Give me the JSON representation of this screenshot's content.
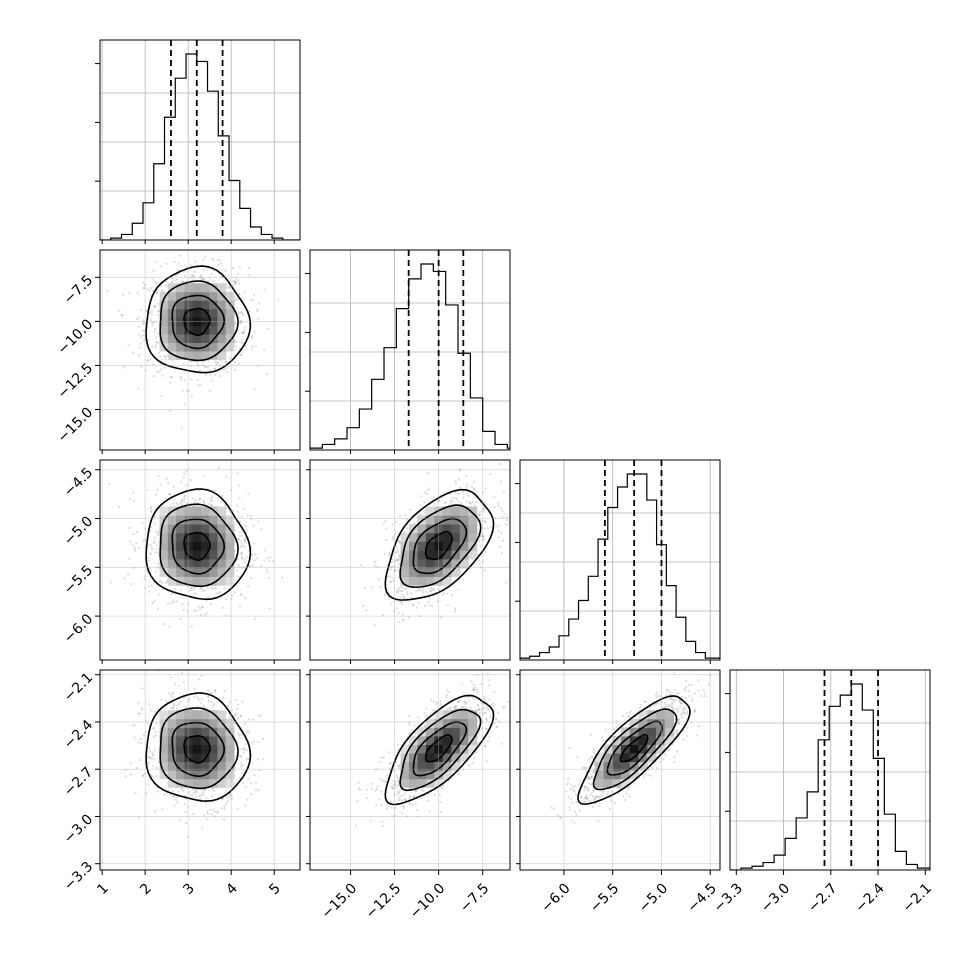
{
  "chart_data": {
    "type": "corner",
    "n_params": 4,
    "labels": [
      "",
      "",
      "",
      ""
    ],
    "params": [
      {
        "index": 0,
        "range": [
          0.95,
          5.6
        ],
        "ticks": [
          1,
          2,
          3,
          4,
          5
        ],
        "tick_labels": [
          "1",
          "2",
          "3",
          "4",
          "5"
        ],
        "quantiles": [
          2.6,
          3.2,
          3.8
        ],
        "median": 3.2,
        "sigma": 0.6
      },
      {
        "index": 1,
        "range": [
          -17.3,
          -5.95
        ],
        "ticks": [
          -15.0,
          -12.5,
          -10.0,
          -7.5
        ],
        "tick_labels": [
          "−15.0",
          "−12.5",
          "−10.0",
          "−7.5"
        ],
        "quantiles": [
          -11.7,
          -10.0,
          -8.6
        ],
        "median": -10.0,
        "sigma": 1.5
      },
      {
        "index": 2,
        "range": [
          -6.45,
          -4.4
        ],
        "ticks": [
          -6.0,
          -5.5,
          -5.0,
          -4.5
        ],
        "tick_labels": [
          "−6.0",
          "−5.5",
          "−5.0",
          "−4.5"
        ],
        "quantiles": [
          -5.58,
          -5.28,
          -5.0
        ],
        "median": -5.28,
        "sigma": 0.28
      },
      {
        "index": 3,
        "range": [
          -3.34,
          -2.07
        ],
        "ticks": [
          -3.3,
          -3.0,
          -2.7,
          -2.4,
          -2.1
        ],
        "tick_labels": [
          "−3.3",
          "−3.0",
          "−2.7",
          "−2.4",
          "−2.1"
        ],
        "quantiles": [
          -2.74,
          -2.57,
          -2.4
        ],
        "median": -2.57,
        "sigma": 0.17
      }
    ],
    "histograms": [
      {
        "param": 0,
        "bin_edges": [
          0.95,
          1.2,
          1.45,
          1.7,
          1.95,
          2.2,
          2.45,
          2.7,
          2.95,
          3.2,
          3.45,
          3.7,
          3.95,
          4.2,
          4.45,
          4.7,
          4.95,
          5.2,
          5.6
        ],
        "counts": [
          0,
          0.01,
          0.03,
          0.09,
          0.2,
          0.41,
          0.66,
          0.87,
          1.0,
          0.96,
          0.8,
          0.56,
          0.32,
          0.17,
          0.07,
          0.03,
          0.01,
          0
        ]
      },
      {
        "param": 1,
        "bin_edges": [
          -17.3,
          -16.6,
          -15.9,
          -15.2,
          -14.5,
          -13.8,
          -13.1,
          -12.4,
          -11.7,
          -11.0,
          -10.3,
          -9.6,
          -8.9,
          -8.2,
          -7.5,
          -6.8,
          -6.1,
          -5.95
        ],
        "counts": [
          0.01,
          0.03,
          0.06,
          0.12,
          0.22,
          0.38,
          0.55,
          0.76,
          0.92,
          1.0,
          0.96,
          0.78,
          0.52,
          0.28,
          0.1,
          0.03,
          0.01
        ]
      },
      {
        "param": 2,
        "bin_edges": [
          -6.45,
          -6.35,
          -6.25,
          -6.15,
          -6.05,
          -5.95,
          -5.85,
          -5.75,
          -5.65,
          -5.55,
          -5.45,
          -5.35,
          -5.25,
          -5.15,
          -5.05,
          -4.95,
          -4.85,
          -4.75,
          -4.65,
          -4.55,
          -4.4
        ],
        "counts": [
          0.01,
          0.02,
          0.04,
          0.07,
          0.13,
          0.22,
          0.32,
          0.45,
          0.65,
          0.82,
          0.93,
          1.0,
          1.0,
          0.86,
          0.62,
          0.4,
          0.23,
          0.1,
          0.04,
          0.01
        ]
      },
      {
        "param": 3,
        "bin_edges": [
          -3.34,
          -3.27,
          -3.2,
          -3.13,
          -3.06,
          -2.99,
          -2.92,
          -2.85,
          -2.78,
          -2.71,
          -2.64,
          -2.57,
          -2.5,
          -2.43,
          -2.36,
          -2.29,
          -2.22,
          -2.15,
          -2.07
        ],
        "counts": [
          0,
          0.01,
          0.02,
          0.04,
          0.08,
          0.17,
          0.28,
          0.42,
          0.7,
          0.88,
          0.94,
          1.0,
          0.86,
          0.6,
          0.3,
          0.1,
          0.03,
          0.01
        ]
      }
    ],
    "pairs": [
      {
        "x": 0,
        "y": 1,
        "correlation": 0.0
      },
      {
        "x": 0,
        "y": 2,
        "correlation": -0.05
      },
      {
        "x": 1,
        "y": 2,
        "correlation": 0.5
      },
      {
        "x": 0,
        "y": 3,
        "correlation": -0.05
      },
      {
        "x": 1,
        "y": 3,
        "correlation": 0.7
      },
      {
        "x": 2,
        "y": 3,
        "correlation": 0.8
      }
    ],
    "contour_levels_sigma": [
      0.5,
      1.0,
      1.5,
      2.0
    ],
    "grid": true,
    "colors": {
      "line": "#000000",
      "grid": "#b0b0b0",
      "density_max": "#000000",
      "scatter": "#9a9a9a"
    }
  }
}
